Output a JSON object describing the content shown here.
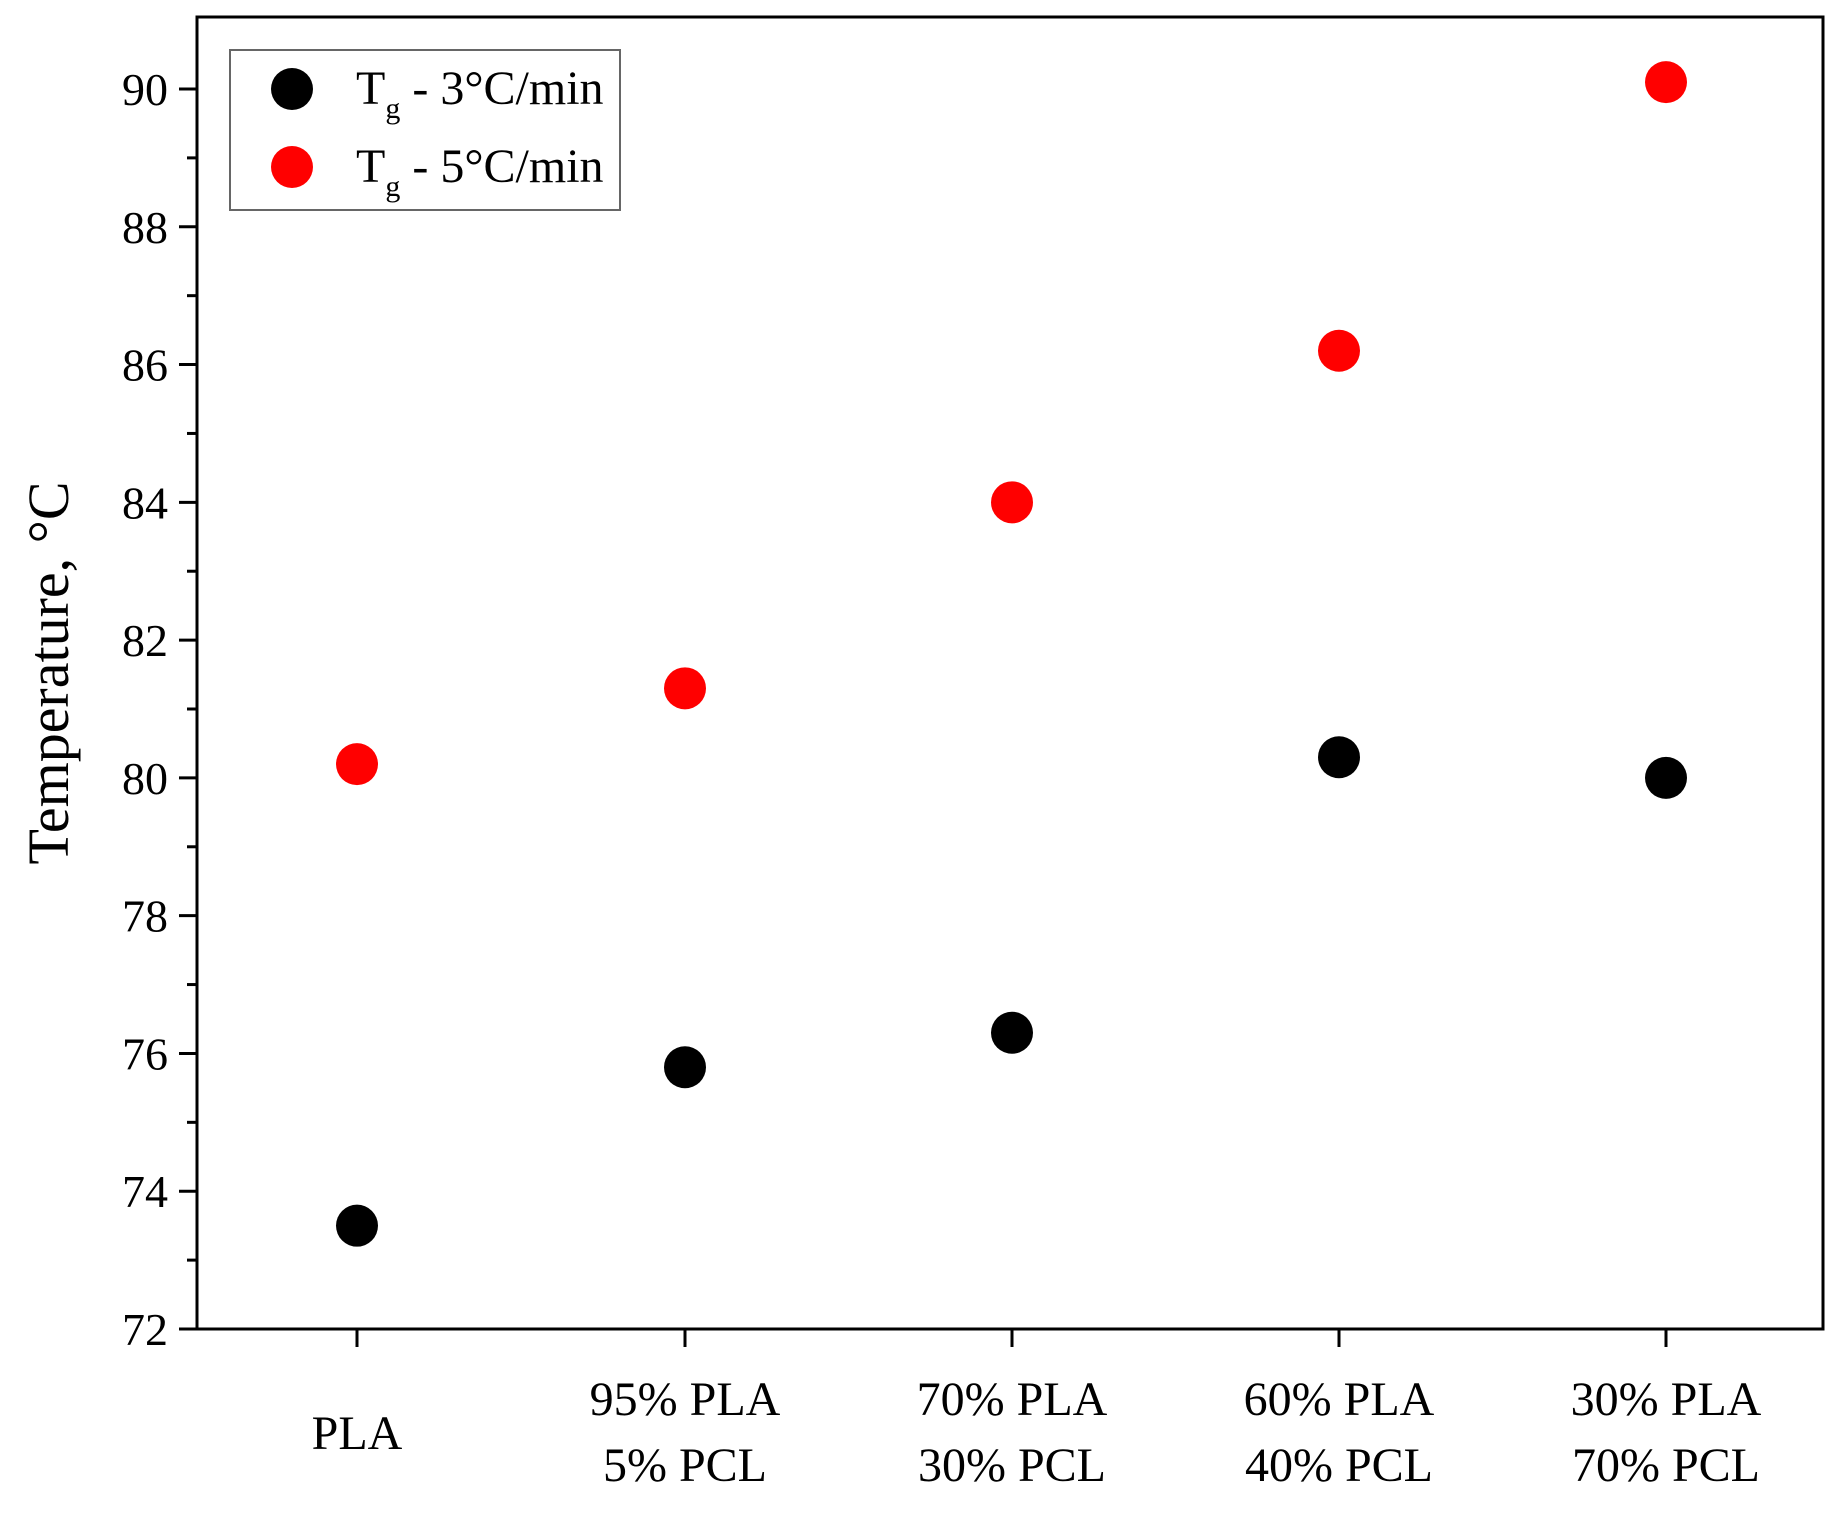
{
  "chart_data": {
    "type": "scatter",
    "title": "",
    "xlabel": "",
    "ylabel": "Temperature, °C",
    "ylim": [
      72,
      91
    ],
    "yticks": [
      "72",
      "74",
      "76",
      "78",
      "80",
      "82",
      "84",
      "86",
      "88",
      "90"
    ],
    "grid": false,
    "legend_position": "top-left",
    "categories": [
      [
        "PLA"
      ],
      [
        "95% PLA",
        "5% PCL"
      ],
      [
        "70% PLA",
        "30% PCL"
      ],
      [
        "60% PLA",
        "40% PCL"
      ],
      [
        "30% PLA",
        "70% PCL"
      ]
    ],
    "series": [
      {
        "name": "Tg - 3°C/min",
        "label_main": "T",
        "label_sub": "g",
        "label_rest": " - 3°C/min",
        "color": "#000000",
        "values": [
          73.5,
          75.8,
          76.3,
          80.3,
          80.0
        ]
      },
      {
        "name": "Tg - 5°C/min",
        "label_main": "T",
        "label_sub": "g",
        "label_rest": " - 5°C/min",
        "color": "#ff0000",
        "values": [
          80.2,
          81.3,
          84.0,
          86.2,
          90.1
        ]
      }
    ]
  }
}
